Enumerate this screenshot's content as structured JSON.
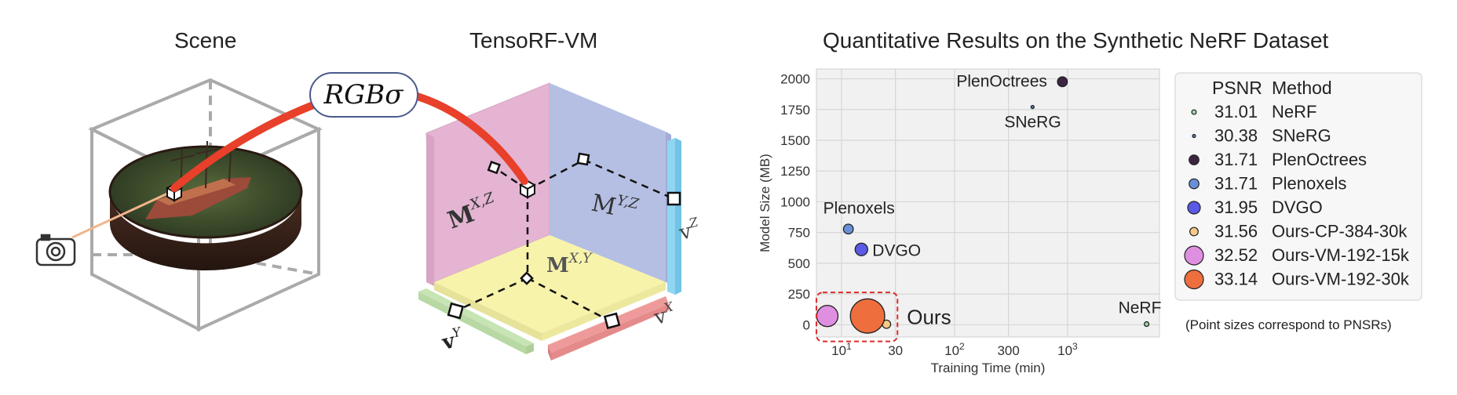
{
  "titles": {
    "scene": "Scene",
    "tensorf": "TensoRF-VM",
    "chart": "Quantitative Results on the Synthetic NeRF Dataset"
  },
  "diagram": {
    "rgb_sigma": "RGBσ",
    "m_xz_base": "M",
    "m_xz_sup": "X,Z",
    "m_yz_base": "M",
    "m_yz_sup": "Y,Z",
    "m_xy_base": "M",
    "m_xy_sup": "X,Y",
    "v_z_base": "v",
    "v_z_sup": "Z",
    "v_x_base": "v",
    "v_x_sup": "X",
    "v_y_base": "v",
    "v_y_sup": "Y",
    "colors": {
      "ray": "#e8402a",
      "plane_xz": "#e4b4d2",
      "plane_yz": "#b4bfe3",
      "plane_xy": "#f7f3ab",
      "vec_z": "#8fd6f2",
      "vec_x": "#ef9a9a",
      "vec_y": "#c7e4b4"
    }
  },
  "chart_data": {
    "type": "scatter",
    "title": "Quantitative Results on the Synthetic NeRF Dataset",
    "xlabel": "Training Time (min)",
    "ylabel": "Model Size (MB)",
    "x_scale": "log",
    "xlim": [
      6,
      6500
    ],
    "ylim": [
      -100,
      2080
    ],
    "grid": true,
    "x_ticks": [
      {
        "value": 10,
        "base": "10",
        "sup": "1"
      },
      {
        "value": 30,
        "base": "30",
        "sup": ""
      },
      {
        "value": 100,
        "base": "10",
        "sup": "2"
      },
      {
        "value": 300,
        "base": "300",
        "sup": ""
      },
      {
        "value": 1000,
        "base": "10",
        "sup": "3"
      }
    ],
    "y_ticks": [
      0,
      250,
      500,
      750,
      1000,
      1250,
      1500,
      1750,
      2000
    ],
    "points": [
      {
        "method": "NeRF",
        "psnr": "31.01",
        "x": 5000,
        "y": 5,
        "color": "#9fd9a8",
        "label": "NeRF"
      },
      {
        "method": "SNeRG",
        "psnr": "30.38",
        "x": 490,
        "y": 1771,
        "color": "#4f7fc6",
        "label": "SNeRG"
      },
      {
        "method": "PlenOctrees",
        "psnr": "31.71",
        "x": 900,
        "y": 1976,
        "color": "#3b2542",
        "label": "PlenOctrees"
      },
      {
        "method": "Plenoxels",
        "psnr": "31.71",
        "x": 11.5,
        "y": 778,
        "color": "#6a8fd8",
        "label": "Plenoxels"
      },
      {
        "method": "DVGO",
        "psnr": "31.95",
        "x": 15,
        "y": 612,
        "color": "#5a5ae6",
        "label": "DVGO"
      },
      {
        "method": "Ours-CP-384-30k",
        "psnr": "31.56",
        "x": 25,
        "y": 4,
        "color": "#f5c98a",
        "label": ""
      },
      {
        "method": "Ours-VM-192-15k",
        "psnr": "32.52",
        "x": 7.5,
        "y": 71,
        "color": "#df8fe0",
        "label": ""
      },
      {
        "method": "Ours-VM-192-30k",
        "psnr": "33.14",
        "x": 17,
        "y": 71,
        "color": "#ee6e3d",
        "label": ""
      }
    ],
    "ours_label": "Ours",
    "legend": {
      "position": "right",
      "header_psnr": "PSNR",
      "header_method": "Method"
    },
    "note": "(Point sizes correspond to PNSRs)"
  }
}
